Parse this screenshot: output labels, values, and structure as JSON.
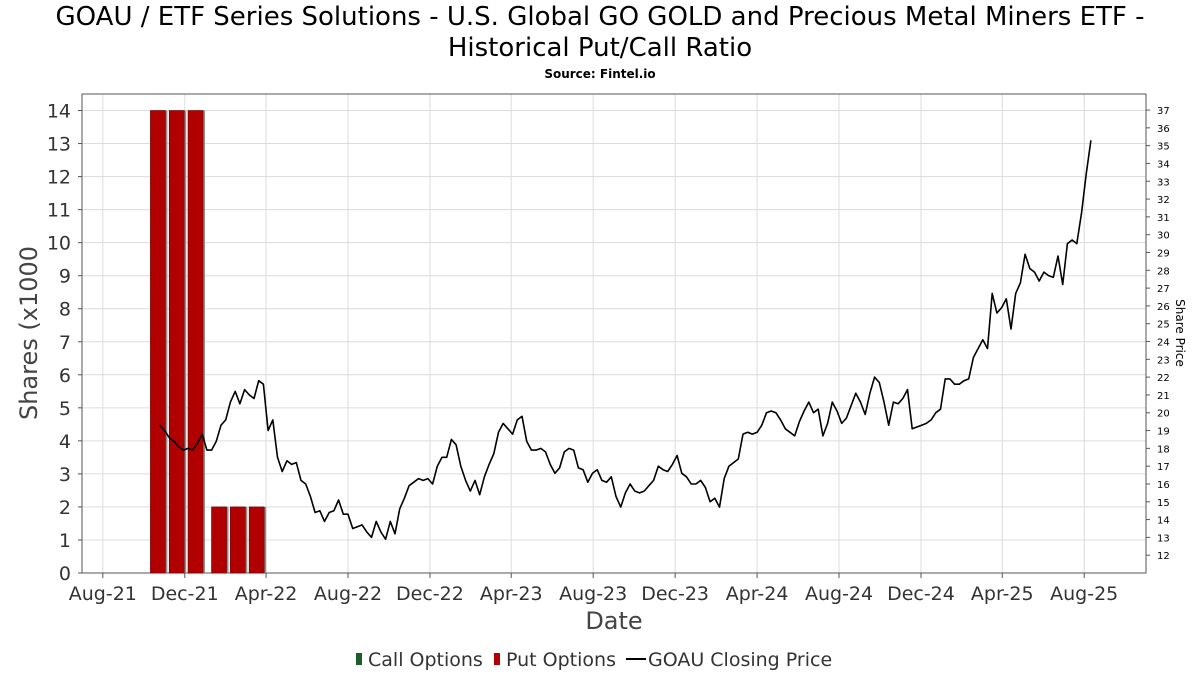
{
  "chart_data": {
    "type": "bar",
    "title_lines": [
      "GOAU / ETF Series Solutions - U.S. Global GO GOLD and Precious Metal Miners ETF -",
      "Historical Put/Call Ratio"
    ],
    "subtitle": "Source: Fintel.io",
    "xlabel": "Date",
    "ylabel": "Shares (x1000",
    "ylabel_right": "Share Price",
    "ylim": [
      0,
      14.5
    ],
    "ylim_right": [
      11,
      37.9
    ],
    "left_ticks": [
      0,
      1,
      2,
      3,
      4,
      5,
      6,
      7,
      8,
      9,
      10,
      11,
      12,
      13,
      14
    ],
    "right_ticks": [
      12,
      13,
      14,
      15,
      16,
      17,
      18,
      19,
      20,
      21,
      22,
      23,
      24,
      25,
      26,
      27,
      28,
      29,
      30,
      31,
      32,
      33,
      34,
      35,
      36,
      37
    ],
    "x_range": [
      "2021-07-01",
      "2025-11-01"
    ],
    "x_ticks": [
      {
        "label": "Aug-21",
        "date": "2021-08-01"
      },
      {
        "label": "Dec-21",
        "date": "2021-12-01"
      },
      {
        "label": "Apr-22",
        "date": "2022-04-01"
      },
      {
        "label": "Aug-22",
        "date": "2022-08-01"
      },
      {
        "label": "Dec-22",
        "date": "2022-12-01"
      },
      {
        "label": "Apr-23",
        "date": "2023-04-01"
      },
      {
        "label": "Aug-23",
        "date": "2023-08-01"
      },
      {
        "label": "Dec-23",
        "date": "2023-12-01"
      },
      {
        "label": "Apr-24",
        "date": "2024-04-01"
      },
      {
        "label": "Aug-24",
        "date": "2024-08-01"
      },
      {
        "label": "Dec-24",
        "date": "2024-12-01"
      },
      {
        "label": "Apr-25",
        "date": "2025-04-01"
      },
      {
        "label": "Aug-25",
        "date": "2025-08-01"
      }
    ],
    "grid": true,
    "legend_position": "bottom",
    "series": [
      {
        "name": "Call Options",
        "color": "#1a5e2a",
        "points": []
      },
      {
        "name": "Put Options",
        "color": "#b00000",
        "points": [
          {
            "date": "2021-10-22",
            "value": 14
          },
          {
            "date": "2021-11-19",
            "value": 14
          },
          {
            "date": "2021-12-17",
            "value": 14
          },
          {
            "date": "2022-01-21",
            "value": 2
          },
          {
            "date": "2022-02-18",
            "value": 2
          },
          {
            "date": "2022-03-18",
            "value": 2
          }
        ]
      },
      {
        "name": "GOAU Closing Price",
        "color": "#000000",
        "points": [
          [
            "2021-10-25",
            19.3
          ],
          [
            "2021-11-01",
            19.0
          ],
          [
            "2021-11-08",
            18.6
          ],
          [
            "2021-11-15",
            18.4
          ],
          [
            "2021-11-22",
            18.1
          ],
          [
            "2021-11-29",
            17.9
          ],
          [
            "2021-12-06",
            18.0
          ],
          [
            "2021-12-13",
            17.9
          ],
          [
            "2021-12-20",
            18.3
          ],
          [
            "2021-12-27",
            18.8
          ],
          [
            "2022-01-03",
            17.9
          ],
          [
            "2022-01-10",
            17.9
          ],
          [
            "2022-01-17",
            18.4
          ],
          [
            "2022-01-24",
            19.3
          ],
          [
            "2022-01-31",
            19.6
          ],
          [
            "2022-02-07",
            20.6
          ],
          [
            "2022-02-14",
            21.2
          ],
          [
            "2022-02-21",
            20.5
          ],
          [
            "2022-02-28",
            21.3
          ],
          [
            "2022-03-07",
            21.0
          ],
          [
            "2022-03-14",
            20.8
          ],
          [
            "2022-03-21",
            21.8
          ],
          [
            "2022-03-28",
            21.6
          ],
          [
            "2022-04-04",
            19.0
          ],
          [
            "2022-04-11",
            19.6
          ],
          [
            "2022-04-18",
            17.5
          ],
          [
            "2022-04-25",
            16.7
          ],
          [
            "2022-05-02",
            17.3
          ],
          [
            "2022-05-09",
            17.1
          ],
          [
            "2022-05-16",
            17.2
          ],
          [
            "2022-05-23",
            16.2
          ],
          [
            "2022-05-30",
            16.0
          ],
          [
            "2022-06-06",
            15.3
          ],
          [
            "2022-06-13",
            14.4
          ],
          [
            "2022-06-20",
            14.5
          ],
          [
            "2022-06-27",
            13.9
          ],
          [
            "2022-07-04",
            14.4
          ],
          [
            "2022-07-11",
            14.5
          ],
          [
            "2022-07-18",
            15.1
          ],
          [
            "2022-07-25",
            14.3
          ],
          [
            "2022-08-01",
            14.3
          ],
          [
            "2022-08-08",
            13.5
          ],
          [
            "2022-08-15",
            13.6
          ],
          [
            "2022-08-22",
            13.7
          ],
          [
            "2022-08-29",
            13.3
          ],
          [
            "2022-09-05",
            13.0
          ],
          [
            "2022-09-12",
            13.9
          ],
          [
            "2022-09-19",
            13.3
          ],
          [
            "2022-09-26",
            12.9
          ],
          [
            "2022-10-03",
            13.9
          ],
          [
            "2022-10-10",
            13.2
          ],
          [
            "2022-10-17",
            14.6
          ],
          [
            "2022-10-24",
            15.2
          ],
          [
            "2022-10-31",
            15.9
          ],
          [
            "2022-11-07",
            16.1
          ],
          [
            "2022-11-14",
            16.3
          ],
          [
            "2022-11-21",
            16.2
          ],
          [
            "2022-11-28",
            16.3
          ],
          [
            "2022-12-05",
            16.0
          ],
          [
            "2022-12-12",
            17.0
          ],
          [
            "2022-12-19",
            17.5
          ],
          [
            "2022-12-26",
            17.5
          ],
          [
            "2023-01-02",
            18.5
          ],
          [
            "2023-01-09",
            18.2
          ],
          [
            "2023-01-16",
            17.0
          ],
          [
            "2023-01-23",
            16.2
          ],
          [
            "2023-01-30",
            15.6
          ],
          [
            "2023-02-06",
            16.2
          ],
          [
            "2023-02-13",
            15.4
          ],
          [
            "2023-02-20",
            16.4
          ],
          [
            "2023-02-27",
            17.1
          ],
          [
            "2023-03-06",
            17.7
          ],
          [
            "2023-03-13",
            18.9
          ],
          [
            "2023-03-20",
            19.4
          ],
          [
            "2023-03-27",
            19.1
          ],
          [
            "2023-04-03",
            18.8
          ],
          [
            "2023-04-10",
            19.6
          ],
          [
            "2023-04-17",
            19.8
          ],
          [
            "2023-04-24",
            18.4
          ],
          [
            "2023-05-01",
            17.9
          ],
          [
            "2023-05-08",
            17.9
          ],
          [
            "2023-05-15",
            18.0
          ],
          [
            "2023-05-22",
            17.8
          ],
          [
            "2023-05-29",
            17.1
          ],
          [
            "2023-06-05",
            16.6
          ],
          [
            "2023-06-12",
            16.9
          ],
          [
            "2023-06-19",
            17.8
          ],
          [
            "2023-06-26",
            18.0
          ],
          [
            "2023-07-03",
            17.9
          ],
          [
            "2023-07-10",
            16.9
          ],
          [
            "2023-07-17",
            16.8
          ],
          [
            "2023-07-24",
            16.1
          ],
          [
            "2023-07-31",
            16.6
          ],
          [
            "2023-08-07",
            16.8
          ],
          [
            "2023-08-14",
            16.2
          ],
          [
            "2023-08-21",
            16.1
          ],
          [
            "2023-08-28",
            16.4
          ],
          [
            "2023-09-04",
            15.3
          ],
          [
            "2023-09-11",
            14.7
          ],
          [
            "2023-09-18",
            15.5
          ],
          [
            "2023-09-25",
            16.0
          ],
          [
            "2023-10-02",
            15.6
          ],
          [
            "2023-10-09",
            15.5
          ],
          [
            "2023-10-16",
            15.6
          ],
          [
            "2023-10-23",
            15.9
          ],
          [
            "2023-10-30",
            16.2
          ],
          [
            "2023-11-06",
            17.0
          ],
          [
            "2023-11-13",
            16.8
          ],
          [
            "2023-11-20",
            16.7
          ],
          [
            "2023-11-27",
            17.1
          ],
          [
            "2023-12-04",
            17.6
          ],
          [
            "2023-12-11",
            16.6
          ],
          [
            "2023-12-18",
            16.4
          ],
          [
            "2023-12-25",
            16.0
          ],
          [
            "2024-01-01",
            16.0
          ],
          [
            "2024-01-08",
            16.2
          ],
          [
            "2024-01-15",
            15.8
          ],
          [
            "2024-01-22",
            15.0
          ],
          [
            "2024-01-29",
            15.2
          ],
          [
            "2024-02-05",
            14.7
          ],
          [
            "2024-02-12",
            16.3
          ],
          [
            "2024-02-19",
            17.0
          ],
          [
            "2024-02-26",
            17.2
          ],
          [
            "2024-03-04",
            17.4
          ],
          [
            "2024-03-11",
            18.8
          ],
          [
            "2024-03-18",
            18.9
          ],
          [
            "2024-03-25",
            18.8
          ],
          [
            "2024-04-01",
            18.9
          ],
          [
            "2024-04-08",
            19.3
          ],
          [
            "2024-04-15",
            20.0
          ],
          [
            "2024-04-22",
            20.1
          ],
          [
            "2024-04-29",
            20.0
          ],
          [
            "2024-05-06",
            19.6
          ],
          [
            "2024-05-13",
            19.1
          ],
          [
            "2024-05-20",
            18.9
          ],
          [
            "2024-05-27",
            18.7
          ],
          [
            "2024-06-03",
            19.5
          ],
          [
            "2024-06-10",
            20.1
          ],
          [
            "2024-06-17",
            20.6
          ],
          [
            "2024-06-24",
            20.0
          ],
          [
            "2024-07-01",
            20.2
          ],
          [
            "2024-07-08",
            18.7
          ],
          [
            "2024-07-15",
            19.4
          ],
          [
            "2024-07-22",
            20.6
          ],
          [
            "2024-07-29",
            20.1
          ],
          [
            "2024-08-05",
            19.4
          ],
          [
            "2024-08-12",
            19.7
          ],
          [
            "2024-08-19",
            20.4
          ],
          [
            "2024-08-26",
            21.1
          ],
          [
            "2024-09-02",
            20.6
          ],
          [
            "2024-09-09",
            19.9
          ],
          [
            "2024-09-16",
            21.1
          ],
          [
            "2024-09-23",
            22.0
          ],
          [
            "2024-09-30",
            21.7
          ],
          [
            "2024-10-07",
            20.6
          ],
          [
            "2024-10-14",
            19.3
          ],
          [
            "2024-10-21",
            20.6
          ],
          [
            "2024-10-28",
            20.5
          ],
          [
            "2024-11-04",
            20.8
          ],
          [
            "2024-11-11",
            21.3
          ],
          [
            "2024-11-18",
            19.1
          ],
          [
            "2024-11-25",
            19.2
          ],
          [
            "2024-12-02",
            19.3
          ],
          [
            "2024-12-09",
            19.4
          ],
          [
            "2024-12-16",
            19.6
          ],
          [
            "2024-12-23",
            20.0
          ],
          [
            "2024-12-30",
            20.2
          ],
          [
            "2025-01-06",
            21.9
          ],
          [
            "2025-01-13",
            21.9
          ],
          [
            "2025-01-20",
            21.6
          ],
          [
            "2025-01-27",
            21.6
          ],
          [
            "2025-02-03",
            21.8
          ],
          [
            "2025-02-10",
            21.9
          ],
          [
            "2025-02-17",
            23.1
          ],
          [
            "2025-02-24",
            23.6
          ],
          [
            "2025-03-03",
            24.1
          ],
          [
            "2025-03-10",
            23.6
          ],
          [
            "2025-03-17",
            26.7
          ],
          [
            "2025-03-24",
            25.6
          ],
          [
            "2025-03-31",
            25.9
          ],
          [
            "2025-04-07",
            26.4
          ],
          [
            "2025-04-14",
            24.7
          ],
          [
            "2025-04-21",
            26.7
          ],
          [
            "2025-04-28",
            27.3
          ],
          [
            "2025-05-05",
            28.9
          ],
          [
            "2025-05-12",
            28.1
          ],
          [
            "2025-05-19",
            27.9
          ],
          [
            "2025-05-26",
            27.4
          ],
          [
            "2025-06-02",
            27.9
          ],
          [
            "2025-06-09",
            27.7
          ],
          [
            "2025-06-16",
            27.6
          ],
          [
            "2025-06-23",
            28.8
          ],
          [
            "2025-06-30",
            27.2
          ],
          [
            "2025-07-07",
            29.5
          ],
          [
            "2025-07-14",
            29.7
          ],
          [
            "2025-07-21",
            29.5
          ],
          [
            "2025-07-28",
            31.2
          ],
          [
            "2025-08-04",
            33.4
          ],
          [
            "2025-08-11",
            35.3
          ]
        ]
      }
    ]
  }
}
